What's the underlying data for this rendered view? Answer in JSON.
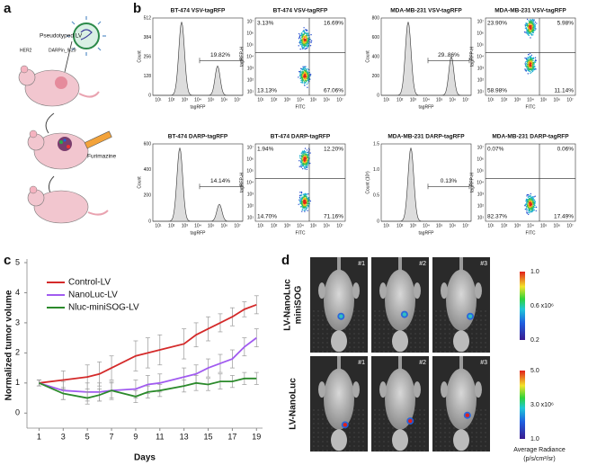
{
  "panel_labels": [
    "a",
    "b",
    "c",
    "d"
  ],
  "panel_a": {
    "vector": "Pseudotyped LV",
    "receptor": "HER2",
    "ligand": "DARPin_9-29",
    "drug": "Furimazine"
  },
  "panel_b": {
    "log_ticks": [
      "10¹",
      "10²",
      "10³",
      "10⁴",
      "10⁵",
      "10⁶",
      "10⁷"
    ],
    "plots": [
      {
        "kind": "histogram",
        "title": "BT-474 VSV-tagRFP",
        "ylabel": "Count",
        "xlabel": "tagRFP",
        "yticks": [
          "0",
          "128",
          "256",
          "384",
          "512"
        ],
        "gate": "19.82%"
      },
      {
        "kind": "flow",
        "title": "BT-474 VSV-tagRFP",
        "ylabel": "tagRFP-H",
        "xlabel": "FITC",
        "quadrants": [
          "3.13%",
          "16.69%",
          "13.13%",
          "67.06%"
        ]
      },
      {
        "kind": "histogram",
        "title": "MDA-MB-231 VSV-tagRFP",
        "ylabel": "Count",
        "xlabel": "tagRFP",
        "yticks": [
          "0",
          "200",
          "400",
          "600",
          "800"
        ],
        "gate": "29..86%"
      },
      {
        "kind": "flow",
        "title": "MDA-MB-231 VSV-tagRFP",
        "ylabel": "tagRFP-H",
        "xlabel": "FITC",
        "quadrants": [
          "23.90%",
          "5.98%",
          "58.98%",
          "11.14%"
        ]
      },
      {
        "kind": "histogram",
        "title": "BT-474 DARP-tagRFP",
        "ylabel": "Count",
        "xlabel": "tagRFP",
        "yticks": [
          "0",
          "200",
          "400",
          "600"
        ],
        "gate": "14.14%"
      },
      {
        "kind": "flow",
        "title": "BT-474 DARP-tagRFP",
        "ylabel": "tagRFP-H",
        "xlabel": "FITC",
        "quadrants": [
          "1.94%",
          "12.20%",
          "14.70%",
          "71.16%"
        ]
      },
      {
        "kind": "histogram",
        "title": "MDA-MB-231 DARP-tagRFP",
        "ylabel": "Count (10³)",
        "xlabel": "tagRFP",
        "yticks": [
          "0",
          "0.5",
          "1.0",
          "1.5"
        ],
        "gate": "0.13%"
      },
      {
        "kind": "flow",
        "title": "MDA-MB-231 DARP-tagRFP",
        "ylabel": "tagRFP-H",
        "xlabel": "FITC",
        "quadrants": [
          "0.07%",
          "0.06%",
          "82.37%",
          "17.49%"
        ]
      }
    ]
  },
  "chart_data": {
    "type": "line",
    "xlabel": "Days",
    "ylabel": "Normalized tumor volume",
    "x": [
      1,
      3,
      5,
      6,
      7,
      9,
      10,
      11,
      13,
      14,
      15,
      16,
      17,
      18,
      19
    ],
    "xlim": [
      0,
      19.5
    ],
    "xticks": [
      1,
      3,
      5,
      7,
      9,
      11,
      13,
      15,
      17,
      19
    ],
    "ylim": [
      -0.5,
      5
    ],
    "yticks": [
      0,
      1,
      2,
      3,
      4,
      5
    ],
    "legend": "upper left",
    "series": [
      {
        "name": "Control-LV",
        "color": "#d42a2a",
        "values": [
          1.0,
          1.1,
          1.2,
          1.3,
          1.5,
          1.9,
          2.0,
          2.1,
          2.3,
          2.6,
          2.8,
          3.0,
          3.2,
          3.45,
          3.6
        ],
        "errors": [
          0.1,
          0.3,
          0.4,
          0.4,
          0.4,
          0.5,
          0.5,
          0.5,
          0.5,
          0.4,
          0.4,
          0.3,
          0.3,
          0.25,
          0.3
        ]
      },
      {
        "name": "NanoLuc-LV",
        "color": "#a15bf0",
        "values": [
          1.0,
          0.75,
          0.7,
          0.7,
          0.75,
          0.8,
          0.95,
          1.0,
          1.2,
          1.3,
          1.5,
          1.65,
          1.8,
          2.2,
          2.5
        ],
        "errors": [
          0.1,
          0.3,
          0.3,
          0.3,
          0.3,
          0.3,
          0.3,
          0.3,
          0.3,
          0.3,
          0.3,
          0.3,
          0.3,
          0.3,
          0.3
        ]
      },
      {
        "name": "Nluc-miniSOG-LV",
        "color": "#2b8a2b",
        "values": [
          1.0,
          0.65,
          0.5,
          0.6,
          0.75,
          0.55,
          0.7,
          0.75,
          0.9,
          1.0,
          0.95,
          1.05,
          1.05,
          1.15,
          1.15
        ],
        "errors": [
          0.1,
          0.2,
          0.2,
          0.2,
          0.25,
          0.2,
          0.2,
          0.2,
          0.2,
          0.25,
          0.2,
          0.25,
          0.2,
          0.2,
          0.2
        ]
      }
    ]
  },
  "panel_d": {
    "mouse_ids": [
      "#1",
      "#2",
      "#3"
    ],
    "rows": [
      {
        "label_lines": [
          "LV-NanoLuc",
          "miniSOG"
        ],
        "scale": [
          "1.0",
          "0.6 x10⁶",
          "0.2"
        ]
      },
      {
        "label_lines": [
          "LV-NanoLuc"
        ],
        "scale": [
          "5.0",
          "3.0 x10⁶",
          "1.0"
        ]
      }
    ],
    "scale_title": "Average Radiance",
    "scale_unit": "(p/s/cm²/sr)"
  }
}
